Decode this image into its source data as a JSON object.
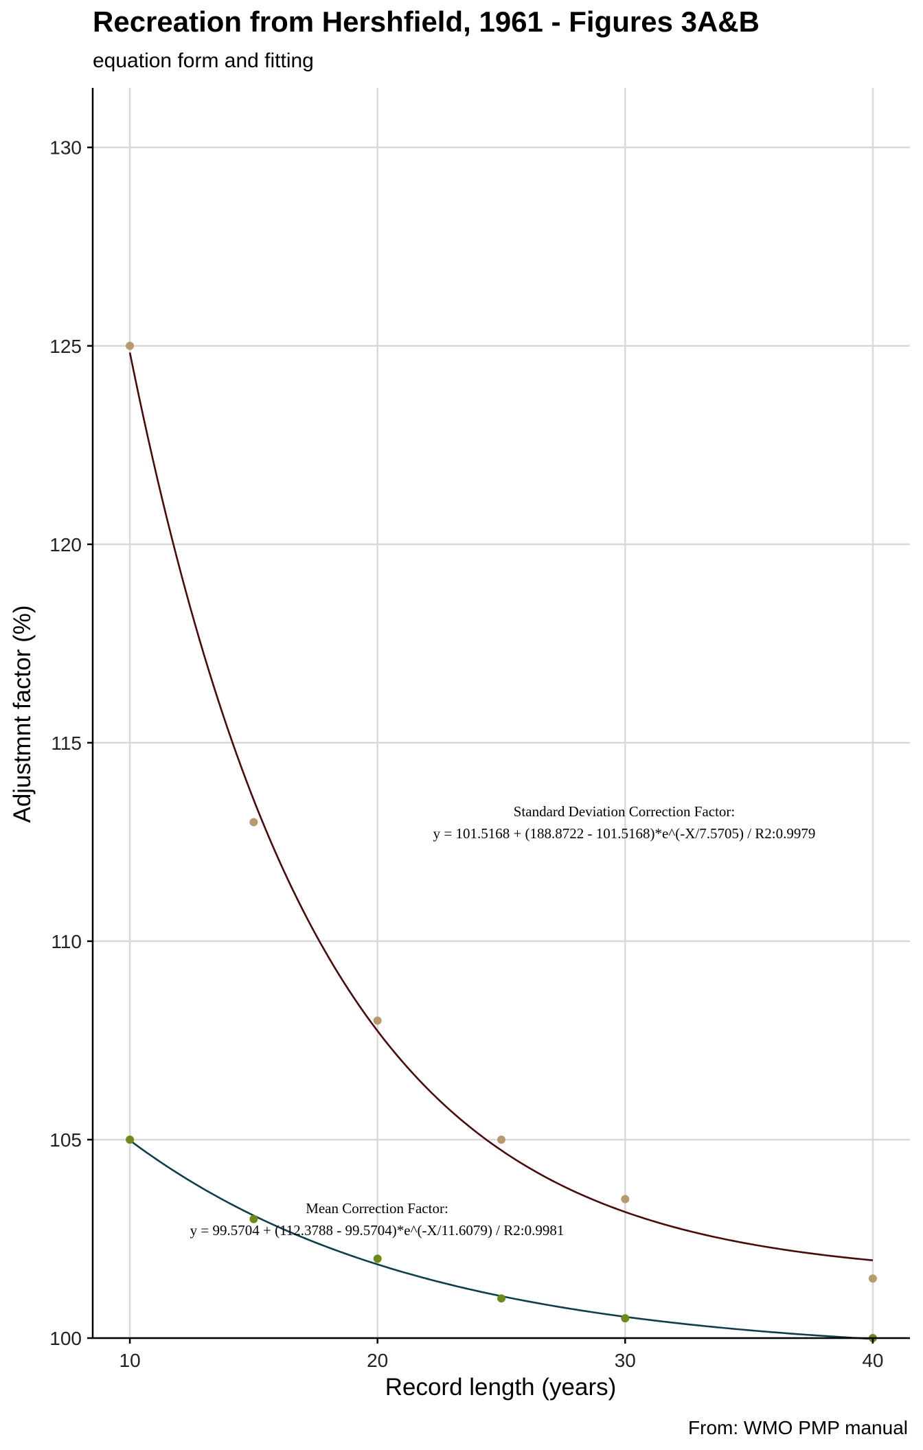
{
  "header": {
    "title": "Recreation from Hershfield, 1961 - Figures 3A&B",
    "subtitle": "equation form and fitting",
    "caption": "From: WMO PMP manual"
  },
  "chart_data": {
    "type": "scatter",
    "title": "Recreation from Hershfield, 1961 - Figures 3A&B",
    "subtitle": "equation form and fitting",
    "xlabel": "Record length (years)",
    "ylabel": "Adjustmnt factor (%)",
    "xlim": [
      8.5,
      41.5
    ],
    "ylim": [
      100,
      131.5
    ],
    "xticks": [
      10,
      20,
      30,
      40
    ],
    "yticks": [
      100,
      105,
      110,
      115,
      120,
      125,
      130
    ],
    "grid": true,
    "legend": "none",
    "series": [
      {
        "key": "std",
        "x": [
          10,
          15,
          20,
          25,
          30,
          40
        ],
        "y": [
          125,
          113,
          108,
          105,
          103.5,
          101.5
        ],
        "point_color": "#b89a70",
        "line_color": "#4a0a0a",
        "fit": {
          "form": "exp",
          "a": 101.5168,
          "b": 188.8722,
          "c": 7.5705,
          "xmin": 10,
          "xmax": 40
        }
      },
      {
        "key": "mean",
        "x": [
          10,
          15,
          20,
          25,
          30,
          40
        ],
        "y": [
          105,
          103,
          102,
          101,
          100.5,
          100
        ],
        "point_color": "#6e8a1a",
        "line_color": "#0f3e4a",
        "fit": {
          "form": "exp",
          "a": 99.5704,
          "b": 112.3788,
          "c": 11.6079,
          "xmin": 10,
          "xmax": 40
        }
      }
    ],
    "annotations": [
      {
        "key": "std",
        "line1": "Standard Deviation Correction Factor:",
        "line2": "y = 101.5168 + (188.8722 - 101.5168)*e^(-X/7.5705) / R2:0.9979"
      },
      {
        "key": "mean",
        "line1": "Mean Correction Factor:",
        "line2": "y = 99.5704 + (112.3788 - 99.5704)*e^(-X/11.6079) / R2:0.9981"
      }
    ]
  }
}
